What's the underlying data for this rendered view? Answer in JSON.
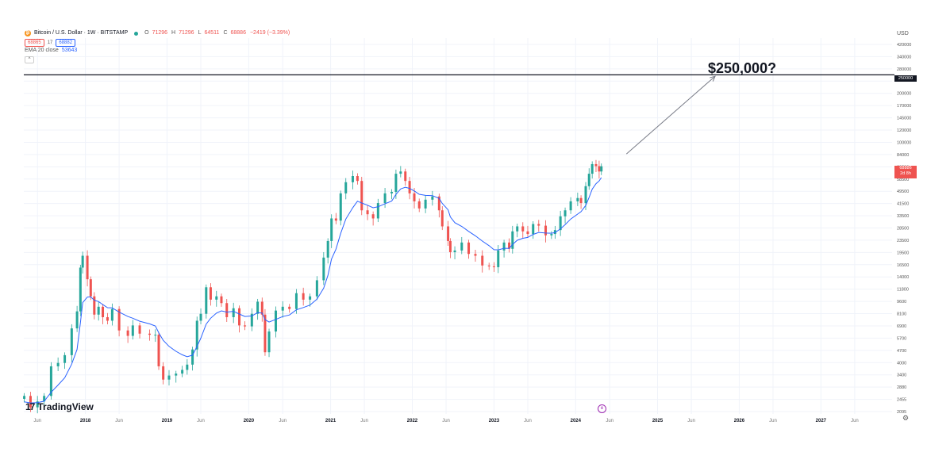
{
  "legend": {
    "symbol_badge": "₿",
    "title": "Bitcoin / U.S. Dollar · 1W · BITSTAMP",
    "ohlc": [
      {
        "key": "O",
        "value": "71296"
      },
      {
        "key": "H",
        "value": "71296"
      },
      {
        "key": "L",
        "value": "64511"
      },
      {
        "key": "C",
        "value": "68886"
      },
      {
        "key": "",
        "value": "−2419 (−3.39%)"
      }
    ],
    "bid": "68865",
    "spread": "17",
    "ask": "68882",
    "ema_label": "EMA 20 close",
    "ema_value": "53643",
    "collapse_glyph": "^"
  },
  "currency": "USD",
  "annotation": {
    "text": "$250,000?"
  },
  "price_tags": {
    "target": "250000",
    "last_price": "68886",
    "last_countdown": "2d 8h"
  },
  "watermark": {
    "logo": "17",
    "text": "TradingView"
  },
  "event_badge": "e",
  "settings_icon": "⚙",
  "colors": {
    "up": "#26a69a",
    "down": "#ef5350",
    "ema": "#2962ff",
    "target_line": "#131722",
    "arrow": "#787b86",
    "grid": "#f0f3fa"
  },
  "chart_data": {
    "type": "candlestick",
    "interval": "1W",
    "scale": "log",
    "ylim": [
      2095,
      420000
    ],
    "y_ticks": [
      "420000",
      "340000",
      "280000",
      "250000",
      "200000",
      "170000",
      "145000",
      "120000",
      "100000",
      "84000",
      "69500",
      "58500",
      "49500",
      "41500",
      "33500",
      "28500",
      "23500",
      "19500",
      "16500",
      "14000",
      "11800",
      "9600",
      "8100",
      "6900",
      "5700",
      "4700",
      "4000",
      "3400",
      "2880",
      "2455",
      "2095"
    ],
    "x_ticks": [
      "Jun",
      "2018",
      "Jun",
      "2019",
      "Jun",
      "2020",
      "Jun",
      "2021",
      "Jun",
      "2022",
      "Jun",
      "2023",
      "Jun",
      "2024",
      "Jun",
      "2025",
      "Jun",
      "2026",
      "Jun",
      "2027",
      "Jun"
    ],
    "x_domain": [
      "2017-04-01",
      "2027-11-15"
    ],
    "horizontal_line": 250000,
    "arrow": {
      "from": [
        "2024-08-15",
        82000
      ],
      "to": [
        "2025-09-15",
        245000
      ]
    },
    "series": [
      {
        "name": "EMA 20 close",
        "kind": "ema",
        "period": 20
      },
      {
        "kind": "ohlc",
        "points": [
          [
            "2017-04-03",
            2700
          ],
          [
            "2017-05-01",
            2300
          ],
          [
            "2017-06-01",
            2500
          ],
          [
            "2017-07-01",
            2700
          ],
          [
            "2017-08-01",
            4100
          ],
          [
            "2017-09-01",
            4300
          ],
          [
            "2017-10-01",
            4800
          ],
          [
            "2017-11-01",
            7000
          ],
          [
            "2017-11-25",
            8900
          ],
          [
            "2017-12-10",
            16500
          ],
          [
            "2017-12-20",
            19500
          ],
          [
            "2018-01-10",
            14000
          ],
          [
            "2018-01-25",
            11000
          ],
          [
            "2018-02-10",
            8500
          ],
          [
            "2018-03-01",
            9500
          ],
          [
            "2018-03-20",
            8200
          ],
          [
            "2018-04-10",
            7800
          ],
          [
            "2018-05-01",
            9200
          ],
          [
            "2018-06-01",
            6800
          ],
          [
            "2018-07-10",
            6300
          ],
          [
            "2018-08-01",
            7300
          ],
          [
            "2018-09-01",
            6500
          ],
          [
            "2018-10-15",
            6400
          ],
          [
            "2018-11-10",
            6400
          ],
          [
            "2018-11-25",
            4100
          ],
          [
            "2018-12-15",
            3400
          ],
          [
            "2019-01-10",
            3600
          ],
          [
            "2019-02-10",
            3700
          ],
          [
            "2019-03-10",
            3900
          ],
          [
            "2019-04-01",
            4200
          ],
          [
            "2019-04-25",
            5200
          ],
          [
            "2019-05-15",
            7800
          ],
          [
            "2019-06-01",
            8600
          ],
          [
            "2019-06-25",
            12500
          ],
          [
            "2019-07-15",
            10500
          ],
          [
            "2019-08-10",
            11000
          ],
          [
            "2019-09-01",
            10000
          ],
          [
            "2019-09-25",
            8200
          ],
          [
            "2019-10-25",
            9300
          ],
          [
            "2019-11-20",
            7300
          ],
          [
            "2019-12-15",
            7200
          ],
          [
            "2020-01-15",
            8600
          ],
          [
            "2020-02-10",
            10200
          ],
          [
            "2020-03-01",
            8500
          ],
          [
            "2020-03-14",
            5000
          ],
          [
            "2020-04-01",
            6700
          ],
          [
            "2020-05-01",
            9000
          ],
          [
            "2020-06-01",
            9500
          ],
          [
            "2020-07-01",
            9200
          ],
          [
            "2020-08-01",
            11500
          ],
          [
            "2020-09-01",
            10500
          ],
          [
            "2020-10-01",
            11000
          ],
          [
            "2020-11-01",
            13800
          ],
          [
            "2020-12-01",
            19000
          ],
          [
            "2020-12-20",
            24000
          ],
          [
            "2021-01-05",
            33000
          ],
          [
            "2021-01-25",
            32000
          ],
          [
            "2021-02-15",
            47000
          ],
          [
            "2021-03-10",
            55000
          ],
          [
            "2021-04-10",
            60000
          ],
          [
            "2021-05-01",
            56000
          ],
          [
            "2021-05-20",
            37000
          ],
          [
            "2021-06-15",
            35000
          ],
          [
            "2021-07-10",
            33000
          ],
          [
            "2021-08-01",
            41000
          ],
          [
            "2021-09-01",
            47000
          ],
          [
            "2021-10-01",
            48000
          ],
          [
            "2021-10-20",
            62000
          ],
          [
            "2021-11-10",
            64000
          ],
          [
            "2021-12-01",
            56000
          ],
          [
            "2021-12-20",
            47000
          ],
          [
            "2022-01-10",
            42000
          ],
          [
            "2022-02-01",
            38000
          ],
          [
            "2022-03-01",
            43000
          ],
          [
            "2022-04-01",
            45000
          ],
          [
            "2022-05-01",
            37000
          ],
          [
            "2022-05-15",
            29500
          ],
          [
            "2022-06-10",
            24000
          ],
          [
            "2022-06-20",
            20500
          ],
          [
            "2022-07-10",
            21000
          ],
          [
            "2022-08-10",
            23500
          ],
          [
            "2022-09-10",
            20000
          ],
          [
            "2022-10-10",
            19500
          ],
          [
            "2022-11-10",
            17000
          ],
          [
            "2022-12-10",
            16800
          ],
          [
            "2023-01-01",
            16600
          ],
          [
            "2023-01-20",
            21000
          ],
          [
            "2023-02-15",
            23500
          ],
          [
            "2023-03-10",
            21500
          ],
          [
            "2023-03-25",
            27500
          ],
          [
            "2023-04-15",
            29500
          ],
          [
            "2023-05-10",
            27500
          ],
          [
            "2023-06-01",
            26500
          ],
          [
            "2023-06-25",
            30500
          ],
          [
            "2023-07-20",
            29800
          ],
          [
            "2023-08-20",
            26000
          ],
          [
            "2023-09-15",
            26500
          ],
          [
            "2023-10-01",
            28000
          ],
          [
            "2023-10-25",
            34000
          ],
          [
            "2023-11-15",
            37000
          ],
          [
            "2023-12-10",
            42000
          ],
          [
            "2024-01-10",
            44000
          ],
          [
            "2024-01-25",
            41000
          ],
          [
            "2024-02-15",
            52000
          ],
          [
            "2024-03-01",
            62000
          ],
          [
            "2024-03-15",
            71000
          ],
          [
            "2024-04-01",
            69000
          ],
          [
            "2024-04-15",
            64000
          ],
          [
            "2024-04-25",
            68886
          ]
        ]
      }
    ]
  }
}
